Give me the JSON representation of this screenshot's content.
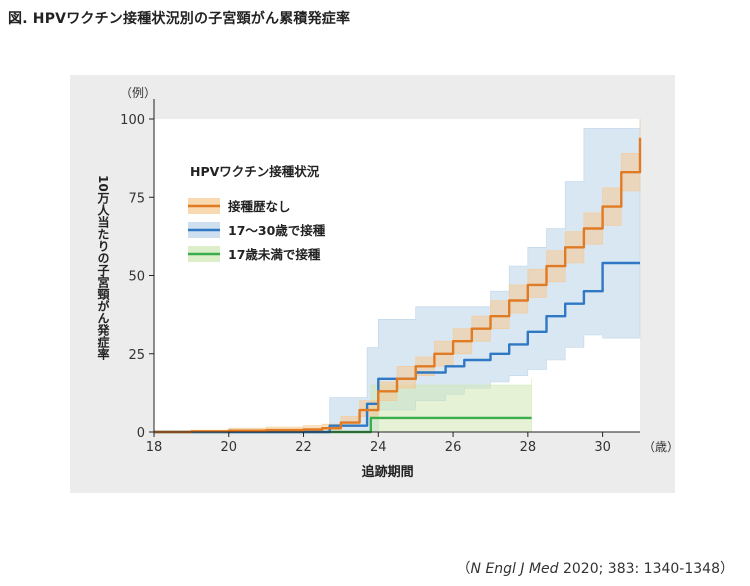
{
  "figure_title": "図. HPVワクチン接種状況別の子宮頸がん累積発症率",
  "citation": {
    "open": "（",
    "journal": "N Engl J Med",
    "rest": " 2020; 383: 1340-1348）"
  },
  "chart_data": {
    "type": "line",
    "subtype": "step-cumulative-incidence-with-confidence-bands",
    "title": "",
    "xlabel": "追跡期間",
    "x_unit": "（歳）",
    "ylabel": "10万人当たりの子宮頸がん発症率",
    "y_unit": "（例）",
    "xlim": [
      18,
      31
    ],
    "ylim": [
      0,
      100
    ],
    "x_ticks": [
      18,
      20,
      22,
      24,
      26,
      28,
      30
    ],
    "y_ticks": [
      0,
      25,
      50,
      75,
      100
    ],
    "grid": false,
    "legend_title": "HPVワクチン接種状況",
    "legend_position": "top-left",
    "series": [
      {
        "name": "接種歴なし",
        "color": "#e07b24",
        "band_color": "#f6c98f",
        "x": [
          18,
          19,
          20,
          21,
          22,
          22.5,
          23,
          23.5,
          24,
          24.5,
          25,
          25.5,
          26,
          26.5,
          27,
          27.5,
          28,
          28.5,
          29,
          29.5,
          30,
          30.5,
          31
        ],
        "y": [
          0,
          0.2,
          0.4,
          0.6,
          0.8,
          1.2,
          3,
          7,
          13,
          17,
          21,
          25,
          29,
          33,
          37,
          42,
          47,
          53,
          59,
          65,
          72,
          83,
          94
        ],
        "ci_lower": [
          0,
          0,
          0.1,
          0.2,
          0.4,
          0.7,
          1.8,
          5,
          10,
          14,
          18,
          21,
          25,
          29,
          33,
          38,
          43,
          48,
          54,
          60,
          66,
          77,
          89
        ],
        "ci_upper": [
          0,
          0.6,
          1.2,
          1.6,
          2,
          2.5,
          5,
          10,
          16,
          21,
          24,
          29,
          33,
          37,
          42,
          47,
          52,
          58,
          64,
          70,
          78,
          89,
          100
        ]
      },
      {
        "name": "17〜30歳で接種",
        "color": "#2f78c4",
        "band_color": "#b9d3ea",
        "x": [
          18,
          22.7,
          23.7,
          24.0,
          25.0,
          25.8,
          26.3,
          27,
          27.5,
          28,
          28.5,
          29,
          29.5,
          30,
          31
        ],
        "y": [
          0,
          2,
          9,
          17,
          19,
          21,
          23,
          25,
          28,
          32,
          37,
          41,
          45,
          54,
          54
        ],
        "ci_lower": [
          0,
          0,
          0,
          7,
          10,
          12,
          14,
          16,
          18,
          20,
          23,
          27,
          31,
          30,
          30
        ],
        "ci_upper": [
          0,
          11,
          27,
          36,
          40,
          40,
          40,
          45,
          53,
          59,
          65,
          80,
          97,
          97,
          100
        ]
      },
      {
        "name": "17歳未満で接種",
        "color": "#3aae4c",
        "band_color": "#cfe8b4",
        "x": [
          18,
          23.5,
          23.8,
          28.1
        ],
        "y": [
          0,
          0,
          4.5,
          4.5
        ],
        "ci_lower": [
          0,
          0,
          0,
          0
        ],
        "ci_upper": [
          0,
          0,
          15,
          17
        ]
      }
    ]
  }
}
